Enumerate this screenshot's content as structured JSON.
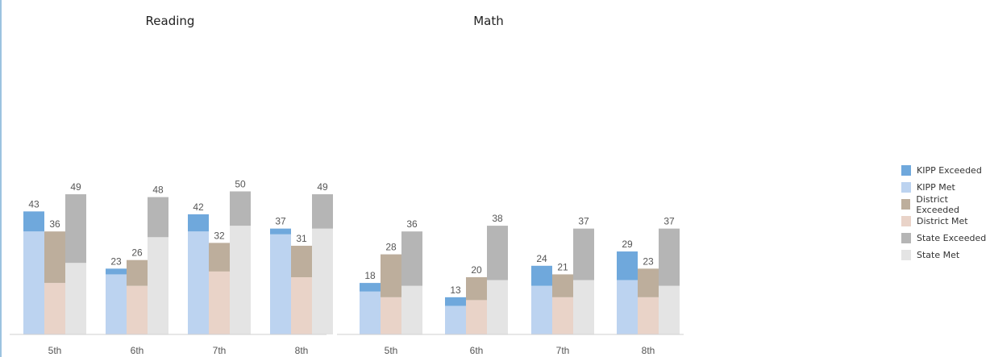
{
  "chart_data": [
    {
      "type": "bar",
      "subtype": "grouped-stacked",
      "title": "Reading",
      "categories": [
        "5th",
        "6th",
        "7th",
        "8th"
      ],
      "groups": [
        {
          "name": "KIPP",
          "totals": [
            43,
            23,
            42,
            37
          ],
          "met": [
            36,
            21,
            36,
            35
          ],
          "exceeded": [
            7,
            2,
            6,
            2
          ]
        },
        {
          "name": "District",
          "totals": [
            36,
            26,
            32,
            31
          ],
          "met": [
            18,
            17,
            22,
            20
          ],
          "exceeded": [
            18,
            9,
            10,
            11
          ]
        },
        {
          "name": "State",
          "totals": [
            49,
            48,
            50,
            49
          ],
          "met": [
            25,
            34,
            38,
            37
          ],
          "exceeded": [
            24,
            14,
            12,
            12
          ]
        }
      ],
      "ylim": [
        0,
        55
      ],
      "xlabel": "",
      "ylabel": "",
      "grid": false
    },
    {
      "type": "bar",
      "subtype": "grouped-stacked",
      "title": "Math",
      "categories": [
        "5th",
        "6th",
        "7th",
        "8th"
      ],
      "groups": [
        {
          "name": "KIPP",
          "totals": [
            18,
            13,
            24,
            29
          ],
          "met": [
            15,
            10,
            17,
            19
          ],
          "exceeded": [
            3,
            3,
            7,
            10
          ]
        },
        {
          "name": "District",
          "totals": [
            28,
            20,
            21,
            23
          ],
          "met": [
            13,
            12,
            13,
            13
          ],
          "exceeded": [
            15,
            8,
            8,
            10
          ]
        },
        {
          "name": "State",
          "totals": [
            36,
            38,
            37,
            37
          ],
          "met": [
            17,
            19,
            19,
            17
          ],
          "exceeded": [
            19,
            19,
            18,
            20
          ]
        }
      ],
      "ylim": [
        0,
        55
      ],
      "xlabel": "",
      "ylabel": "",
      "grid": false
    }
  ],
  "legend": {
    "placement": "right",
    "items": [
      {
        "label": "KIPP Exceeded",
        "color": "#6fa8dc"
      },
      {
        "label": "KIPP Met",
        "color": "#bcd3f0"
      },
      {
        "label": "District Exceeded",
        "color": "#bdae9c"
      },
      {
        "label": "District Met",
        "color": "#e9d3c8"
      },
      {
        "label": "State Exceeded",
        "color": "#b5b5b5"
      },
      {
        "label": "State Met",
        "color": "#e4e4e4"
      }
    ]
  },
  "colors": {
    "KIPP": {
      "exceeded": "#6fa8dc",
      "met": "#bcd3f0"
    },
    "District": {
      "exceeded": "#bdae9c",
      "met": "#e9d3c8"
    },
    "State": {
      "exceeded": "#b5b5b5",
      "met": "#e4e4e4"
    }
  }
}
